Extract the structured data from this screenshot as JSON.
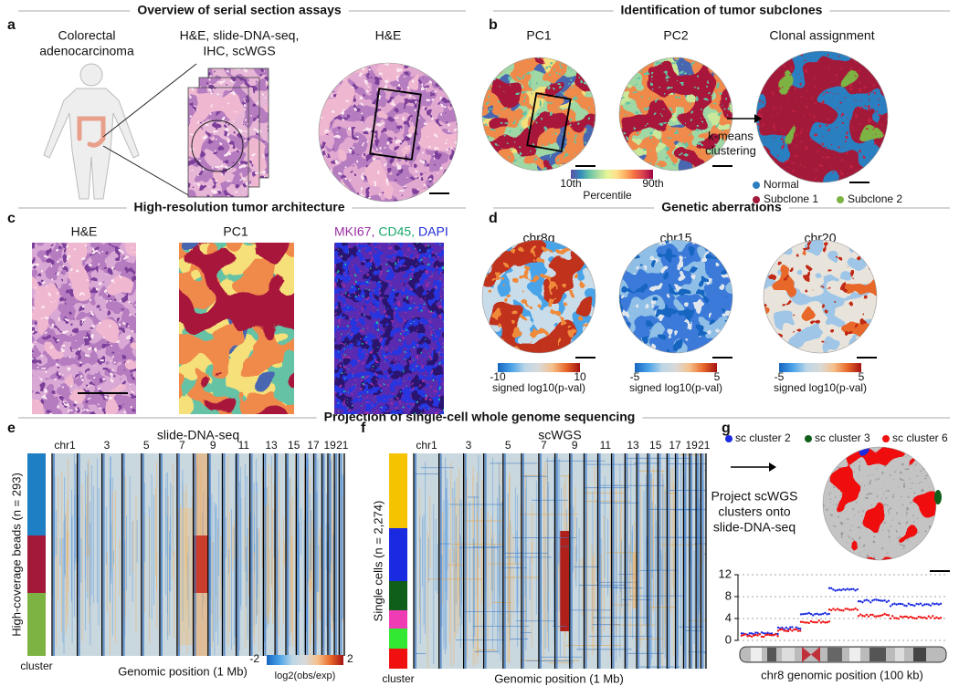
{
  "figure": {
    "sections": [
      "Overview of serial section assays",
      "Identification of tumor subclones",
      "High-resolution tumor architecture",
      "Genetic aberrations",
      "Projection of single-cell whole genome sequencing"
    ],
    "panels": {
      "a": {
        "letter": "a",
        "labels": [
          "Colorectal",
          "adenocarcinoma",
          "H&E, slide-DNA-seq,",
          "IHC, scWGS",
          "H&E"
        ]
      },
      "b": {
        "letter": "b",
        "titles": [
          "PC1",
          "PC2",
          "Clonal assignment"
        ],
        "arrow_label": [
          "k-means",
          "clustering"
        ],
        "colorbar": {
          "min_label": "10th",
          "max_label": "90th",
          "label": "Percentile"
        },
        "legend": [
          {
            "name": "Normal",
            "color": "#2a7fc0"
          },
          {
            "name": "Subclone 1",
            "color": "#a3193a"
          },
          {
            "name": "Subclone 2",
            "color": "#7cb342"
          }
        ]
      },
      "c": {
        "letter": "c",
        "titles": [
          "H&E",
          "PC1"
        ],
        "stain_labels": [
          {
            "text": "MKI67,",
            "color": "#9b2fa3"
          },
          {
            "text": "CD45,",
            "color": "#1aa86b"
          },
          {
            "text": "DAPI",
            "color": "#1f2bd6"
          }
        ]
      },
      "d": {
        "letter": "d",
        "maps": [
          {
            "title": "chr8q",
            "min": -10,
            "max": 10
          },
          {
            "title": "chr15",
            "min": -5,
            "max": 5
          },
          {
            "title": "chr20",
            "min": -5,
            "max": 5
          }
        ],
        "colorbar_label": "signed log10(p-val)"
      },
      "e": {
        "letter": "e",
        "title": "slide-DNA-seq",
        "chr_labels": [
          "chr1",
          "3",
          "5",
          "7",
          "9",
          "11",
          "13",
          "15",
          "17",
          "19",
          "21"
        ],
        "y_label": "High-coverage beads (n = 293)",
        "cluster_label": "cluster",
        "x_label": "Genomic position (1 Mb)",
        "cluster_colors": [
          "#1f7fc4",
          "#a3193a",
          "#7cb342"
        ],
        "colorbar": {
          "min": -2,
          "max": 2,
          "label": "log2(obs/exp)"
        }
      },
      "f": {
        "letter": "f",
        "title": "scWGS",
        "chr_labels": [
          "chr1",
          "3",
          "5",
          "7",
          "9",
          "11",
          "13",
          "15",
          "17",
          "19",
          "21"
        ],
        "y_label": "Single cells (n = 2,274)",
        "cluster_label": "cluster",
        "x_label": "Genomic position (1 Mb)",
        "cluster_colors": [
          "#f5c400",
          "#1a2ae0",
          "#0f5e1a",
          "#f03cb4",
          "#33e833",
          "#f01010"
        ]
      },
      "g": {
        "letter": "g",
        "legend": [
          {
            "name": "sc cluster 2",
            "color": "#1a2ae0"
          },
          {
            "name": "sc cluster 3",
            "color": "#0f5e1a"
          },
          {
            "name": "sc cluster 6",
            "color": "#f01010"
          }
        ],
        "arrow_label": [
          "Project scWGS",
          "clusters onto",
          "slide-DNA-seq"
        ],
        "plot": {
          "ylim": [
            0,
            12
          ],
          "yticks": [
            0,
            4,
            8,
            12
          ],
          "x_label": "chr8 genomic position (100 kb)"
        }
      }
    }
  }
}
